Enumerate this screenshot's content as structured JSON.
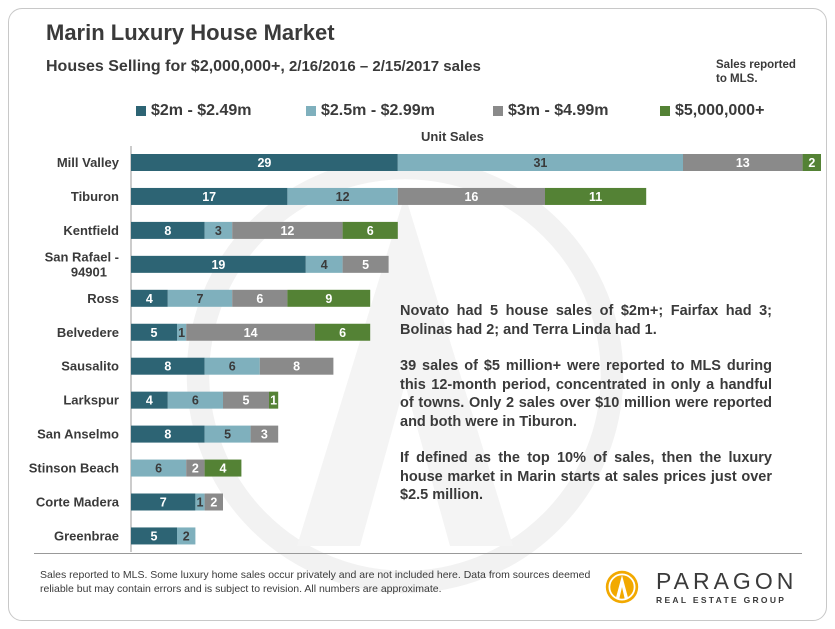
{
  "header": {
    "title": "Marin Luxury House Market",
    "subtitle_main": "Houses Selling for $2,000,000+,",
    "subtitle_dates": " 2/16/2016 – 2/15/2017 sales",
    "note": "Sales reported to MLS."
  },
  "colors": {
    "s1": "#2d6474",
    "s2": "#7fb0bd",
    "s3": "#8a8a8a",
    "s4": "#548235",
    "label_text": "#3a3a3a"
  },
  "chart_data": {
    "type": "bar",
    "orientation": "horizontal",
    "stacked": true,
    "axis_title": "Unit Sales",
    "legend_position": "top",
    "categories": [
      "Mill Valley",
      "Tiburon",
      "Kentfield",
      "San Rafael - 94901",
      "Ross",
      "Belvedere",
      "Sausalito",
      "Larkspur",
      "San Anselmo",
      "Stinson Beach",
      "Corte Madera",
      "Greenbrae"
    ],
    "series": [
      {
        "name": "$2m - $2.49m",
        "values": [
          29,
          17,
          8,
          19,
          4,
          5,
          8,
          4,
          8,
          0,
          7,
          5
        ]
      },
      {
        "name": "$2.5m - $2.99m",
        "values": [
          31,
          12,
          3,
          4,
          7,
          1,
          6,
          6,
          5,
          6,
          1,
          2
        ]
      },
      {
        "name": "$3m - $4.99m",
        "values": [
          13,
          16,
          12,
          5,
          6,
          14,
          8,
          5,
          3,
          2,
          2,
          0
        ]
      },
      {
        "name": "$5,000,000+",
        "values": [
          2,
          11,
          6,
          0,
          9,
          6,
          0,
          1,
          0,
          4,
          0,
          0
        ]
      }
    ],
    "xlim": [
      0,
      75
    ],
    "grid": false
  },
  "text_block": {
    "p1": "Novato had 5 house sales of $2m+; Fairfax had 3; Bolinas had 2; and Terra Linda had 1.",
    "p2": "39 sales of $5 million+ were reported to MLS during this 12-month period, concentrated in only a handful of towns. Only 2 sales over $10 million were reported and both were in Tiburon.",
    "p3": "If defined as the top 10% of sales, then the luxury house market in Marin starts at sales prices just over $2.5 million."
  },
  "footer": {
    "disclaimer": "Sales reported to MLS. Some luxury home sales occur privately and are not included here. Data from sources deemed reliable but may contain errors and is subject to revision. All numbers are approximate."
  },
  "logo": {
    "name": "PARAGON",
    "tagline": "REAL ESTATE GROUP"
  }
}
